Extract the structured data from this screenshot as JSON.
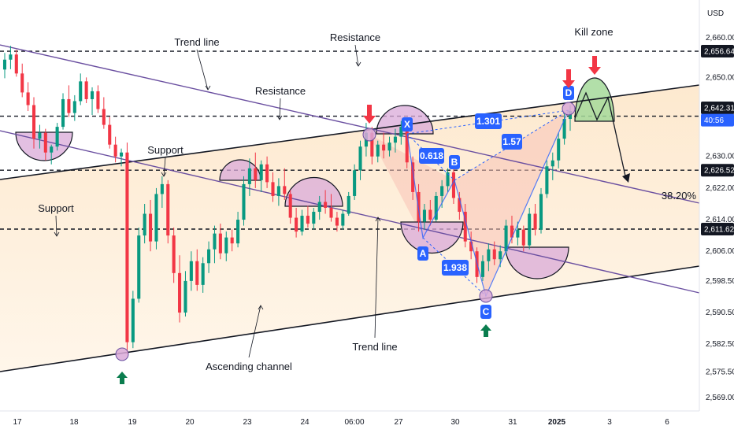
{
  "chart_data": {
    "type": "candlestick",
    "currency": "USD",
    "y_axis": {
      "range": [
        2566,
        2668
      ],
      "ticks": [
        "2,660.00",
        "2,650.00",
        "2,640.00",
        "2,630.00",
        "2,622.00",
        "2,614.00",
        "2,606.00",
        "2,598.50",
        "2,590.50",
        "2,582.50",
        "2,575.50",
        "2,569.00"
      ]
    },
    "x_axis": {
      "ticks": [
        "17",
        "18",
        "19",
        "20",
        "23",
        "24",
        "06:00",
        "27",
        "30",
        "31",
        "2025",
        "3",
        "6"
      ]
    },
    "price_tags": [
      {
        "label": "2,656.64",
        "value": 2656.64,
        "style": "black"
      },
      {
        "label": "2,642.31",
        "value": 2642.31,
        "style": "black"
      },
      {
        "label": "40:56",
        "value": 2639.2,
        "style": "blue"
      },
      {
        "label": "2,626.52",
        "value": 2626.52,
        "style": "black"
      },
      {
        "label": "2,611.62",
        "value": 2611.62,
        "style": "black"
      }
    ],
    "horizontal_levels": [
      2656.64,
      2640.2,
      2626.52,
      2611.62
    ],
    "fib_level": {
      "label": "38.20%"
    },
    "harmonic_pattern": {
      "points": [
        {
          "label": "X",
          "price": 2638.5
        },
        {
          "label": "A",
          "price": 2610.8
        },
        {
          "label": "B",
          "price": 2626.5
        },
        {
          "label": "C",
          "price": 2598.0
        },
        {
          "label": "D",
          "price": 2642.6
        }
      ],
      "ratios": [
        "0.618",
        "1.938",
        "1.301",
        "1.57"
      ]
    },
    "annotations": [
      "Trend line",
      "Resistance",
      "Resistance",
      "Support",
      "Support",
      "Kill zone",
      "Trend line",
      "Ascending channel"
    ],
    "candles": [
      [
        2652.0,
        2656.2,
        2649.8,
        2654.5
      ],
      [
        2654.5,
        2658.0,
        2652.1,
        2655.8
      ],
      [
        2655.8,
        2657.0,
        2650.2,
        2651.0
      ],
      [
        2651.0,
        2653.5,
        2645.0,
        2646.2
      ],
      [
        2646.2,
        2648.8,
        2641.5,
        2643.0
      ],
      [
        2643.0,
        2645.0,
        2632.0,
        2634.5
      ],
      [
        2634.5,
        2638.0,
        2632.0,
        2636.0
      ],
      [
        2636.0,
        2637.0,
        2629.0,
        2631.0
      ],
      [
        2631.0,
        2633.0,
        2628.0,
        2632.5
      ],
      [
        2632.5,
        2638.5,
        2631.5,
        2637.5
      ],
      [
        2637.5,
        2646.0,
        2636.8,
        2644.5
      ],
      [
        2644.5,
        2648.0,
        2640.0,
        2641.0
      ],
      [
        2641.0,
        2645.5,
        2639.0,
        2644.0
      ],
      [
        2644.0,
        2651.0,
        2643.0,
        2649.0
      ],
      [
        2649.0,
        2650.0,
        2643.5,
        2644.5
      ],
      [
        2644.5,
        2647.5,
        2640.5,
        2646.5
      ],
      [
        2646.5,
        2648.0,
        2641.0,
        2642.0
      ],
      [
        2642.0,
        2645.0,
        2637.0,
        2638.0
      ],
      [
        2638.0,
        2640.0,
        2632.0,
        2633.0
      ],
      [
        2633.0,
        2635.0,
        2628.5,
        2630.0
      ],
      [
        2630.0,
        2632.0,
        2627.5,
        2631.0
      ],
      [
        2631.0,
        2633.5,
        2580.0,
        2583.0
      ],
      [
        2583.0,
        2596.0,
        2581.5,
        2594.0
      ],
      [
        2594.0,
        2612.0,
        2593.0,
        2610.0
      ],
      [
        2610.0,
        2618.0,
        2608.0,
        2615.5
      ],
      [
        2615.5,
        2619.0,
        2606.0,
        2608.5
      ],
      [
        2608.5,
        2622.0,
        2606.5,
        2620.5
      ],
      [
        2620.5,
        2625.0,
        2617.0,
        2623.0
      ],
      [
        2623.0,
        2624.0,
        2608.0,
        2610.0
      ],
      [
        2610.0,
        2612.0,
        2598.0,
        2600.5
      ],
      [
        2600.5,
        2605.0,
        2588.0,
        2590.5
      ],
      [
        2590.5,
        2601.0,
        2589.5,
        2598.5
      ],
      [
        2598.5,
        2606.0,
        2596.0,
        2603.5
      ],
      [
        2603.5,
        2606.5,
        2596.0,
        2597.5
      ],
      [
        2597.5,
        2604.5,
        2595.5,
        2603.0
      ],
      [
        2603.0,
        2608.5,
        2600.5,
        2606.5
      ],
      [
        2606.5,
        2612.5,
        2603.0,
        2610.5
      ],
      [
        2610.5,
        2613.0,
        2604.0,
        2605.5
      ],
      [
        2605.5,
        2611.0,
        2603.5,
        2609.5
      ],
      [
        2609.5,
        2611.5,
        2606.0,
        2608.0
      ],
      [
        2608.0,
        2616.0,
        2607.0,
        2614.0
      ],
      [
        2614.0,
        2625.0,
        2612.5,
        2623.0
      ],
      [
        2623.0,
        2629.5,
        2620.0,
        2627.0
      ],
      [
        2627.0,
        2631.0,
        2622.0,
        2624.0
      ],
      [
        2624.0,
        2629.0,
        2621.0,
        2628.0
      ],
      [
        2628.0,
        2630.0,
        2622.0,
        2623.5
      ],
      [
        2623.5,
        2626.0,
        2618.5,
        2620.0
      ],
      [
        2620.0,
        2624.5,
        2617.5,
        2622.5
      ],
      [
        2622.5,
        2627.0,
        2619.0,
        2620.5
      ],
      [
        2620.5,
        2621.5,
        2613.0,
        2614.5
      ],
      [
        2614.5,
        2617.0,
        2609.5,
        2611.0
      ],
      [
        2611.0,
        2616.5,
        2610.0,
        2615.0
      ],
      [
        2615.0,
        2617.5,
        2612.0,
        2613.0
      ],
      [
        2613.0,
        2617.0,
        2611.5,
        2616.0
      ],
      [
        2616.0,
        2620.0,
        2614.0,
        2618.5
      ],
      [
        2618.5,
        2621.5,
        2615.5,
        2617.0
      ],
      [
        2617.0,
        2620.5,
        2613.5,
        2614.5
      ],
      [
        2614.5,
        2616.0,
        2611.0,
        2612.5
      ],
      [
        2612.5,
        2616.5,
        2611.5,
        2615.5
      ],
      [
        2615.5,
        2621.0,
        2615.0,
        2620.0
      ],
      [
        2620.0,
        2628.0,
        2619.0,
        2626.5
      ],
      [
        2626.5,
        2634.0,
        2624.0,
        2632.5
      ],
      [
        2632.5,
        2638.5,
        2630.0,
        2636.0
      ],
      [
        2636.0,
        2637.5,
        2628.0,
        2630.0
      ],
      [
        2630.0,
        2634.0,
        2628.5,
        2633.0
      ],
      [
        2633.0,
        2636.0,
        2629.5,
        2631.5
      ],
      [
        2631.5,
        2635.0,
        2630.0,
        2633.5
      ],
      [
        2633.5,
        2637.0,
        2631.0,
        2635.0
      ],
      [
        2635.0,
        2639.0,
        2633.0,
        2637.5
      ],
      [
        2637.5,
        2638.5,
        2627.0,
        2628.5
      ],
      [
        2628.5,
        2630.0,
        2619.0,
        2621.0
      ],
      [
        2621.0,
        2623.0,
        2611.0,
        2613.5
      ],
      [
        2613.5,
        2618.0,
        2611.5,
        2616.5
      ],
      [
        2616.5,
        2619.0,
        2612.5,
        2614.0
      ],
      [
        2614.0,
        2621.0,
        2613.5,
        2620.0
      ],
      [
        2620.0,
        2624.0,
        2617.0,
        2622.5
      ],
      [
        2622.5,
        2627.0,
        2621.0,
        2626.0
      ],
      [
        2626.0,
        2627.0,
        2618.0,
        2619.5
      ],
      [
        2619.5,
        2621.0,
        2614.0,
        2616.0
      ],
      [
        2616.0,
        2618.0,
        2607.0,
        2608.5
      ],
      [
        2608.5,
        2611.0,
        2604.0,
        2606.0
      ],
      [
        2606.0,
        2607.0,
        2598.0,
        2599.5
      ],
      [
        2599.5,
        2605.0,
        2598.5,
        2603.5
      ],
      [
        2603.5,
        2608.0,
        2601.0,
        2606.5
      ],
      [
        2606.5,
        2608.5,
        2602.5,
        2604.0
      ],
      [
        2604.0,
        2607.5,
        2602.0,
        2606.0
      ],
      [
        2606.0,
        2614.0,
        2605.0,
        2612.5
      ],
      [
        2612.5,
        2615.0,
        2608.0,
        2609.5
      ],
      [
        2609.5,
        2613.5,
        2607.5,
        2611.5
      ],
      [
        2611.5,
        2612.5,
        2606.0,
        2607.5
      ],
      [
        2607.5,
        2617.0,
        2606.5,
        2615.5
      ],
      [
        2615.5,
        2618.0,
        2610.0,
        2611.5
      ],
      [
        2611.5,
        2622.0,
        2610.5,
        2620.5
      ],
      [
        2620.5,
        2629.0,
        2619.5,
        2627.5
      ],
      [
        2627.5,
        2631.0,
        2624.0,
        2629.0
      ],
      [
        2629.0,
        2636.0,
        2627.0,
        2634.5
      ],
      [
        2634.5,
        2641.0,
        2633.0,
        2639.5
      ],
      [
        2639.5,
        2643.0,
        2636.5,
        2641.5
      ]
    ]
  }
}
